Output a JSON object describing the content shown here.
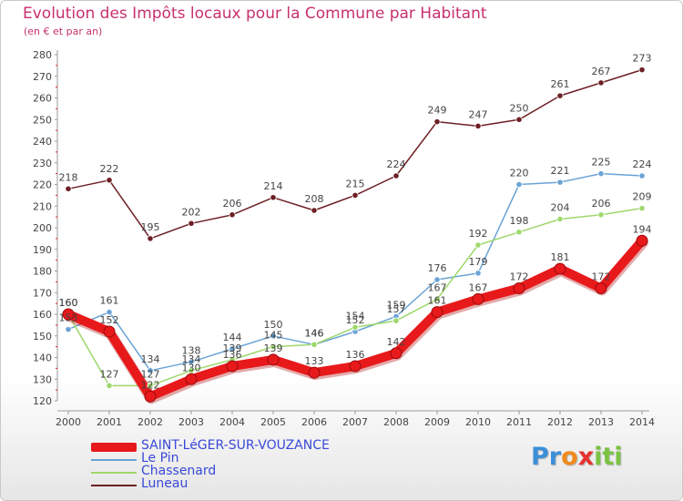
{
  "header": {
    "title": "Evolution des Impôts locaux pour la Commune par Habitant",
    "subtitle": "(en € et par an)"
  },
  "logo": {
    "letters": [
      "P",
      "r",
      "o",
      "x",
      "i",
      "t",
      "i"
    ],
    "colors": [
      "#3b8fd8",
      "#3b8fd8",
      "#f08a1e",
      "#e6322e",
      "#7cc242",
      "#7cc242",
      "#7cc242"
    ]
  },
  "chart_data": {
    "type": "line",
    "title": "Evolution des Impôts locaux pour la Commune par Habitant",
    "subtitle": "(en € et par an)",
    "xlabel": "",
    "ylabel": "",
    "x": [
      2000,
      2001,
      2002,
      2003,
      2004,
      2005,
      2006,
      2007,
      2008,
      2009,
      2010,
      2011,
      2012,
      2013,
      2014
    ],
    "ylim": [
      120,
      280
    ],
    "yticks": [
      120,
      130,
      140,
      150,
      160,
      170,
      180,
      190,
      200,
      210,
      220,
      230,
      240,
      250,
      260,
      270,
      280
    ],
    "grid": false,
    "legend_position": "bottom-left",
    "series": [
      {
        "name": "SAINT-LéGER-SUR-VOUZANCE",
        "values": [
          160,
          152,
          122,
          130,
          136,
          139,
          133,
          136,
          142,
          161,
          167,
          172,
          181,
          172,
          194
        ],
        "labels": [
          "160",
          "152",
          "122",
          "130",
          "136",
          "139",
          "133",
          "136",
          "142",
          "161",
          "167",
          "172",
          "181",
          "172",
          "194"
        ],
        "color": "#e8191b",
        "style": "thick"
      },
      {
        "name": "Le Pin",
        "values": [
          153,
          161,
          134,
          138,
          144,
          150,
          146,
          152,
          159,
          176,
          179,
          220,
          221,
          225,
          224
        ],
        "labels": [
          "153",
          "161",
          "134",
          "138",
          "144",
          "150",
          "146",
          "152",
          "159",
          "176",
          "179",
          "220",
          "221",
          "225",
          "224"
        ],
        "color": "#6aa3d6",
        "style": "thin"
      },
      {
        "name": "Chassenard",
        "values": [
          160,
          127,
          127,
          134,
          139,
          145,
          146,
          154,
          157,
          167,
          192,
          198,
          204,
          206,
          209
        ],
        "labels": [
          "160",
          "127",
          "127",
          "134",
          "139",
          "145",
          "146",
          "154",
          "157",
          "167",
          "192",
          "198",
          "204",
          "206",
          "209"
        ],
        "color": "#9ed86b",
        "style": "thin"
      },
      {
        "name": "Luneau",
        "values": [
          218,
          222,
          195,
          202,
          206,
          214,
          208,
          215,
          224,
          249,
          247,
          250,
          261,
          267,
          273
        ],
        "labels": [
          "218",
          "222",
          "195",
          "202",
          "206",
          "214",
          "208",
          "215",
          "224",
          "249",
          "247",
          "250",
          "261",
          "267",
          "273"
        ],
        "color": "#6d1f24",
        "style": "thin"
      }
    ]
  }
}
